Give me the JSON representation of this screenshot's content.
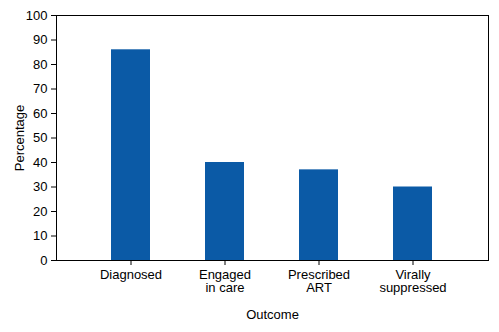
{
  "chart_data": {
    "type": "bar",
    "categories": [
      "Diagnosed",
      "Engaged\nin care",
      "Prescribed\nART",
      "Virally\nsuppressed"
    ],
    "values": [
      86,
      40,
      37,
      30
    ],
    "color": "#0b5aa6",
    "x_label": "Outcome",
    "y_label": "Percentage",
    "ylim": [
      0,
      100
    ],
    "yticks": [
      0,
      10,
      20,
      30,
      40,
      50,
      60,
      70,
      80,
      90,
      100
    ],
    "grid": false,
    "data_labels": false
  }
}
